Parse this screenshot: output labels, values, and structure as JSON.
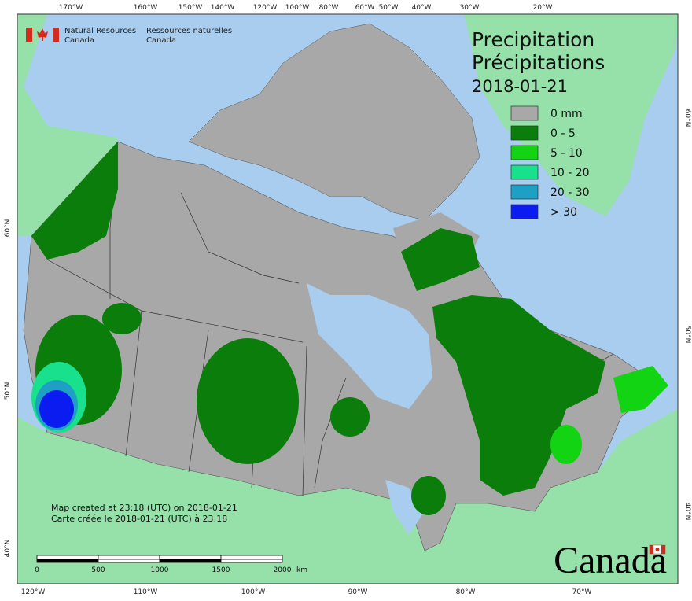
{
  "header": {
    "org_en": [
      "Natural Resources",
      "Canada"
    ],
    "org_fr": [
      "Ressources naturelles",
      "Canada"
    ]
  },
  "title": [
    "Precipitation",
    "Précipitations"
  ],
  "date": "2018-01-21",
  "legend": [
    {
      "label": "0 mm",
      "color": "#a8a8a8"
    },
    {
      "label": "0 - 5",
      "color": "#0b7d0b"
    },
    {
      "label": "5 - 10",
      "color": "#12d412"
    },
    {
      "label": "10 - 20",
      "color": "#19e08c"
    },
    {
      "label": "20 - 30",
      "color": "#1e9fc4"
    },
    {
      "label": "> 30",
      "color": "#0a1cf0"
    }
  ],
  "top_axis": [
    "170°W",
    "160°W",
    "150°W",
    "140°W",
    "120°W",
    "100°W",
    "80°W",
    "60°W",
    "50°W",
    "40°W",
    "30°W",
    "20°W"
  ],
  "bottom_axis": [
    "120°W",
    "110°W",
    "100°W",
    "90°W",
    "80°W",
    "70°W"
  ],
  "left_axis": [
    "60°N",
    "50°N",
    "40°N"
  ],
  "right_axis": [
    "60°N",
    "50°N",
    "40°N"
  ],
  "notes": [
    "Map created at 23:18 (UTC) on 2018-01-21",
    "Carte créée le 2018-01-21 (UTC) à 23:18"
  ],
  "scale": {
    "labels": [
      "0",
      "500",
      "1000",
      "1500",
      "2000"
    ],
    "unit": "km"
  },
  "wordmark": "Canada"
}
